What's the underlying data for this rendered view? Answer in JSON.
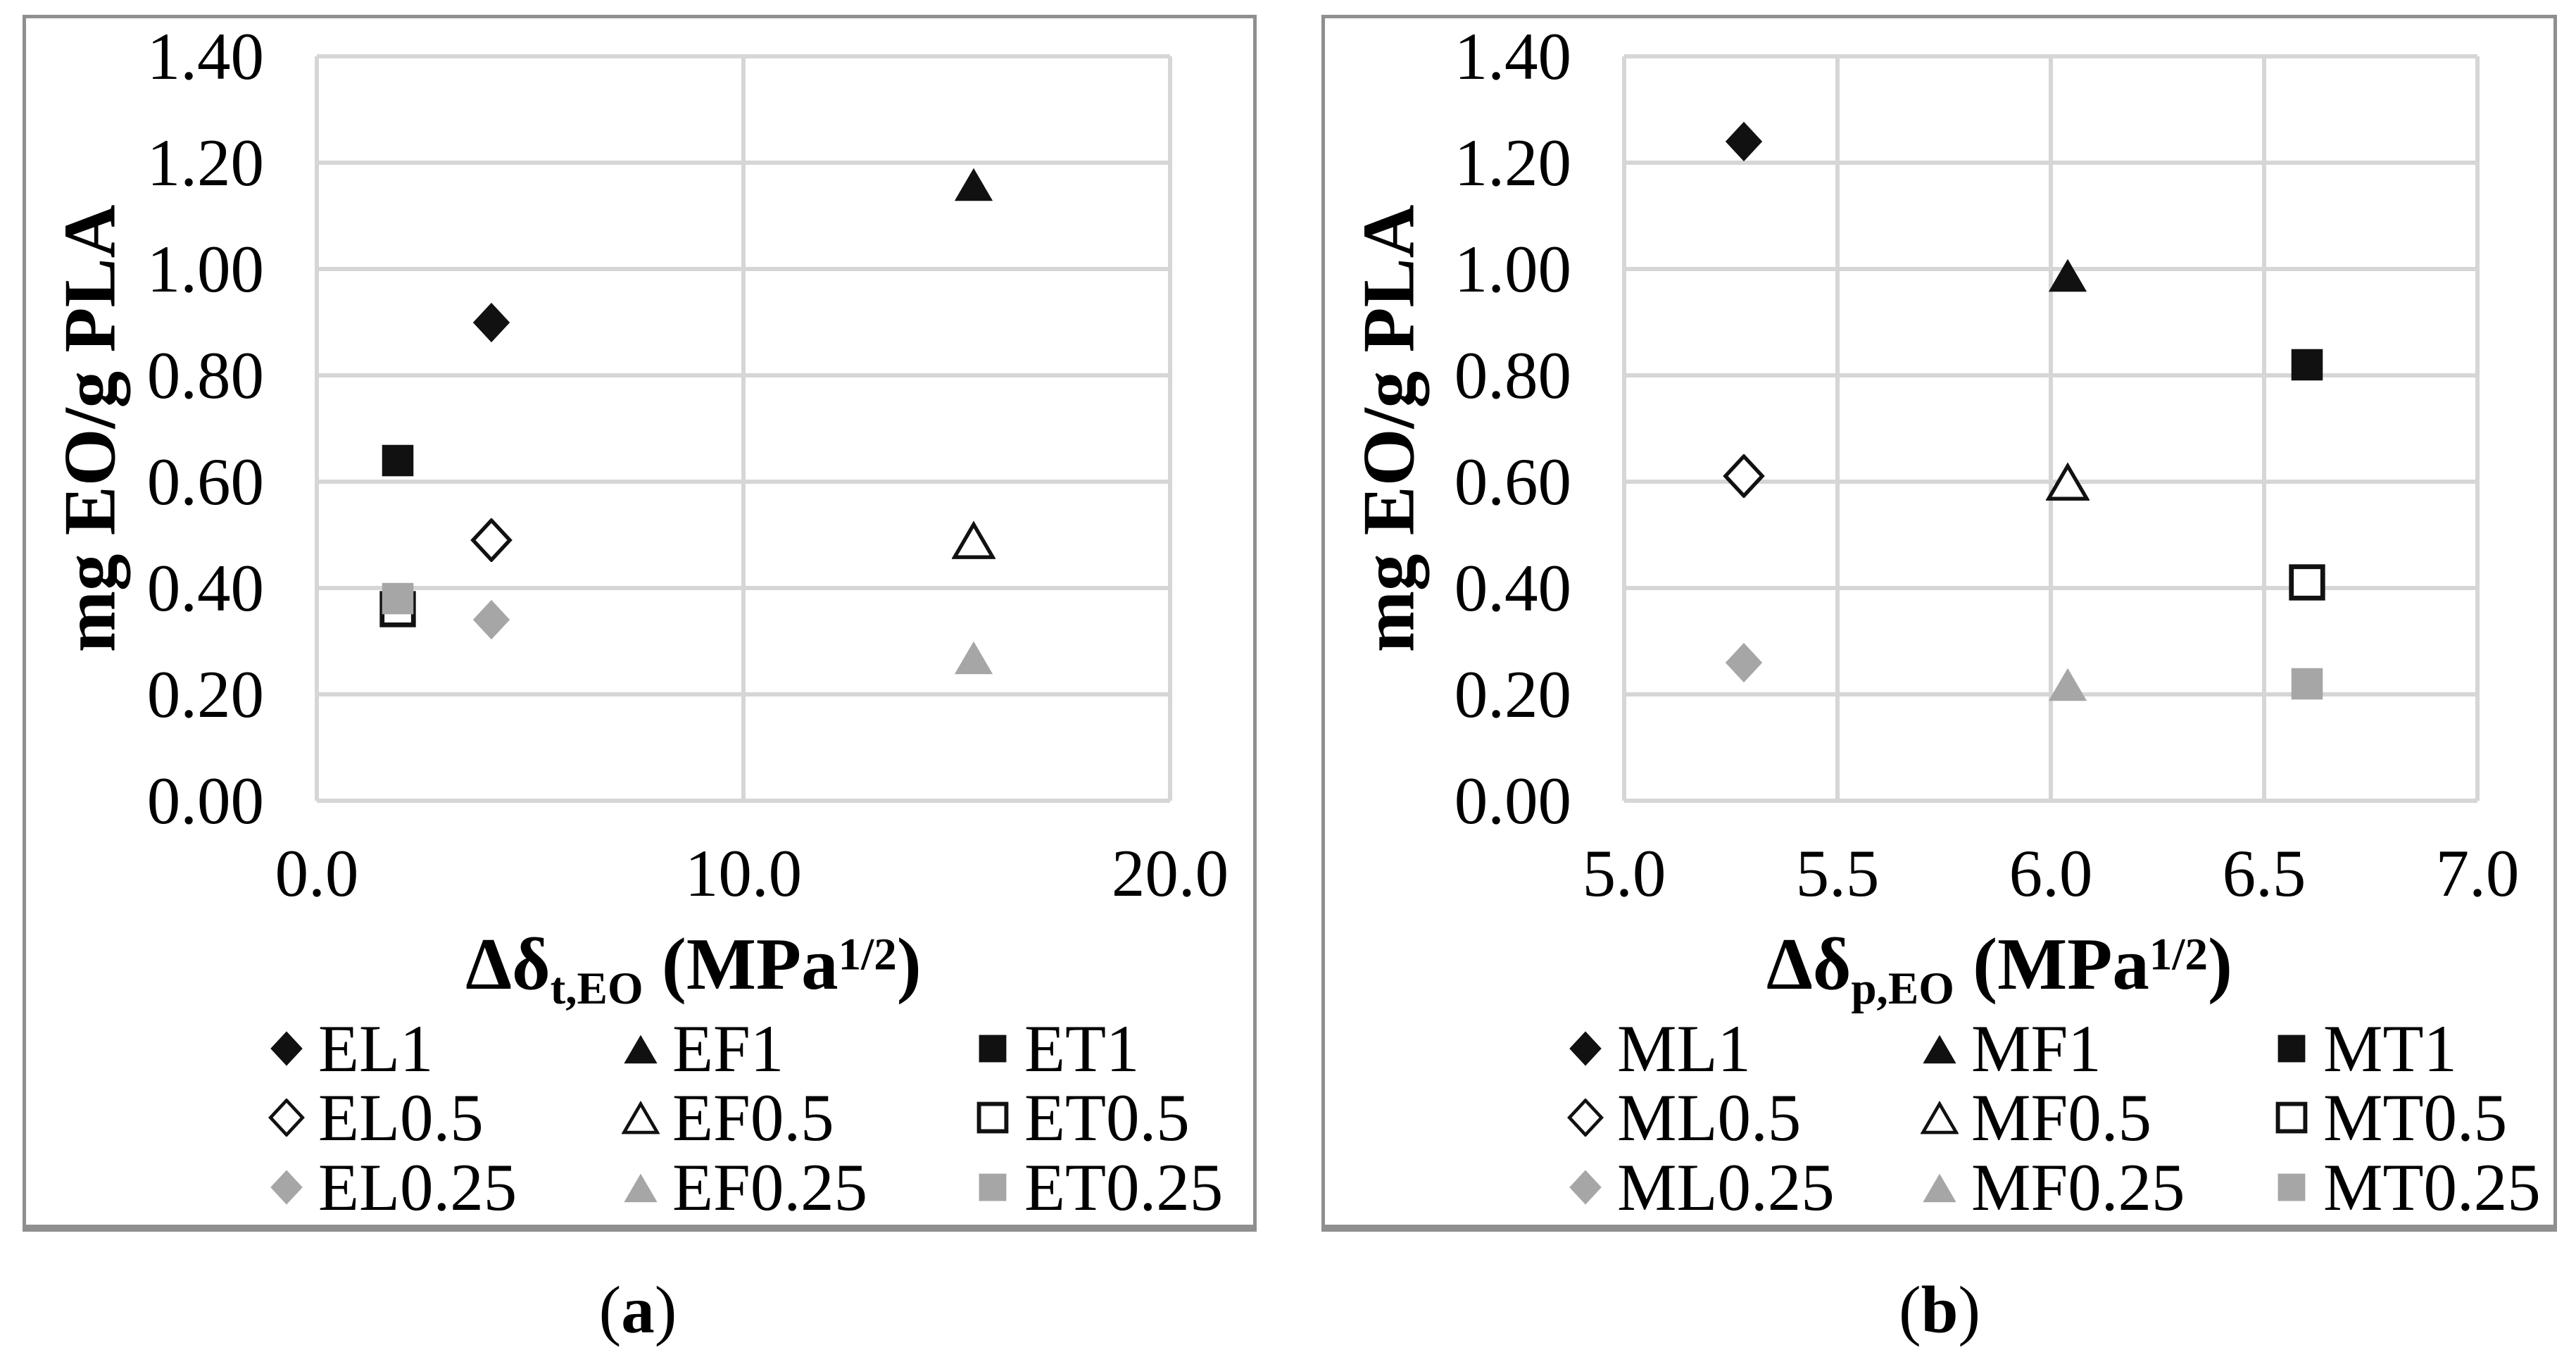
{
  "figure_type": "two-panel scatter chart",
  "colors": {
    "marker_black": "#111111",
    "marker_gray": "#a6a6a6",
    "marker_open_fill": "#ffffff",
    "gridline": "#d6d6d6",
    "panel_border": "#8f8f8f",
    "text": "#000000"
  },
  "chart_data": [
    {
      "type": "scatter",
      "panel": "a",
      "caption": {
        "open": "(",
        "letter": "a",
        "close": ")"
      },
      "ylabel": "mg EO/g PLA",
      "xlabel": {
        "base": "Δδ",
        "sub": "t,EO",
        "mid": "  (MPa",
        "sup": "1/2",
        "end": ")"
      },
      "x_axis": {
        "min": 0.0,
        "max": 20.0,
        "grid": true,
        "ticks": [
          {
            "value": 0.0,
            "label": "0.0"
          },
          {
            "value": 10.0,
            "label": "10.0"
          },
          {
            "value": 20.0,
            "label": "20.0"
          }
        ]
      },
      "y_axis": {
        "min": 0.0,
        "max": 1.4,
        "grid": true,
        "ticks": [
          {
            "value": 1.4,
            "label": "1.40"
          },
          {
            "value": 1.2,
            "label": "1.20"
          },
          {
            "value": 1.0,
            "label": "1.00"
          },
          {
            "value": 0.8,
            "label": "0.80"
          },
          {
            "value": 0.6,
            "label": "0.60"
          },
          {
            "value": 0.4,
            "label": "0.40"
          },
          {
            "value": 0.2,
            "label": "0.20"
          },
          {
            "value": 0.0,
            "label": "0.00"
          }
        ]
      },
      "legend": {
        "position": "bottom-inside",
        "columns": 3
      },
      "series": [
        {
          "name": "EL1",
          "marker": "diamond",
          "fill": "black",
          "x": 4.1,
          "y": 0.9
        },
        {
          "name": "EF1",
          "marker": "triangle",
          "fill": "black",
          "x": 15.4,
          "y": 1.16
        },
        {
          "name": "ET1",
          "marker": "square",
          "fill": "black",
          "x": 1.9,
          "y": 0.64
        },
        {
          "name": "EL0.5",
          "marker": "diamond",
          "fill": "open",
          "x": 4.1,
          "y": 0.49
        },
        {
          "name": "EF0.5",
          "marker": "triangle",
          "fill": "open",
          "x": 15.4,
          "y": 0.49
        },
        {
          "name": "ET0.5",
          "marker": "square",
          "fill": "open",
          "x": 1.9,
          "y": 0.36
        },
        {
          "name": "EL0.25",
          "marker": "diamond",
          "fill": "gray",
          "x": 4.1,
          "y": 0.34
        },
        {
          "name": "EF0.25",
          "marker": "triangle",
          "fill": "gray",
          "x": 15.4,
          "y": 0.27
        },
        {
          "name": "ET0.25",
          "marker": "square",
          "fill": "gray",
          "x": 1.9,
          "y": 0.38
        }
      ]
    },
    {
      "type": "scatter",
      "panel": "b",
      "caption": {
        "open": "(",
        "letter": "b",
        "close": ")"
      },
      "ylabel": "mg EO/g PLA",
      "xlabel": {
        "base": "Δδ",
        "sub": "p,EO",
        "mid": "  (MPa",
        "sup": "1/2",
        "end": ")"
      },
      "x_axis": {
        "min": 5.0,
        "max": 7.0,
        "grid": true,
        "ticks": [
          {
            "value": 5.0,
            "label": "5.0"
          },
          {
            "value": 5.5,
            "label": "5.5"
          },
          {
            "value": 6.0,
            "label": "6.0"
          },
          {
            "value": 6.5,
            "label": "6.5"
          },
          {
            "value": 7.0,
            "label": "7.0"
          }
        ]
      },
      "y_axis": {
        "min": 0.0,
        "max": 1.4,
        "grid": true,
        "ticks": [
          {
            "value": 1.4,
            "label": "1.40"
          },
          {
            "value": 1.2,
            "label": "1.20"
          },
          {
            "value": 1.0,
            "label": "1.00"
          },
          {
            "value": 0.8,
            "label": "0.80"
          },
          {
            "value": 0.6,
            "label": "0.60"
          },
          {
            "value": 0.4,
            "label": "0.40"
          },
          {
            "value": 0.2,
            "label": "0.20"
          },
          {
            "value": 0.0,
            "label": "0.00"
          }
        ]
      },
      "legend": {
        "position": "bottom-inside",
        "columns": 3
      },
      "series": [
        {
          "name": "ML1",
          "marker": "diamond",
          "fill": "black",
          "x": 5.28,
          "y": 1.24
        },
        {
          "name": "MF1",
          "marker": "triangle",
          "fill": "black",
          "x": 6.04,
          "y": 0.99
        },
        {
          "name": "MT1",
          "marker": "square",
          "fill": "black",
          "x": 6.6,
          "y": 0.82
        },
        {
          "name": "ML0.5",
          "marker": "diamond",
          "fill": "open",
          "x": 5.28,
          "y": 0.61
        },
        {
          "name": "MF0.5",
          "marker": "triangle",
          "fill": "open",
          "x": 6.04,
          "y": 0.6
        },
        {
          "name": "MT0.5",
          "marker": "square",
          "fill": "open",
          "x": 6.6,
          "y": 0.41
        },
        {
          "name": "ML0.25",
          "marker": "diamond",
          "fill": "gray",
          "x": 5.28,
          "y": 0.26
        },
        {
          "name": "MF0.25",
          "marker": "triangle",
          "fill": "gray",
          "x": 6.04,
          "y": 0.22
        },
        {
          "name": "MT0.25",
          "marker": "square",
          "fill": "gray",
          "x": 6.6,
          "y": 0.22
        }
      ]
    }
  ]
}
